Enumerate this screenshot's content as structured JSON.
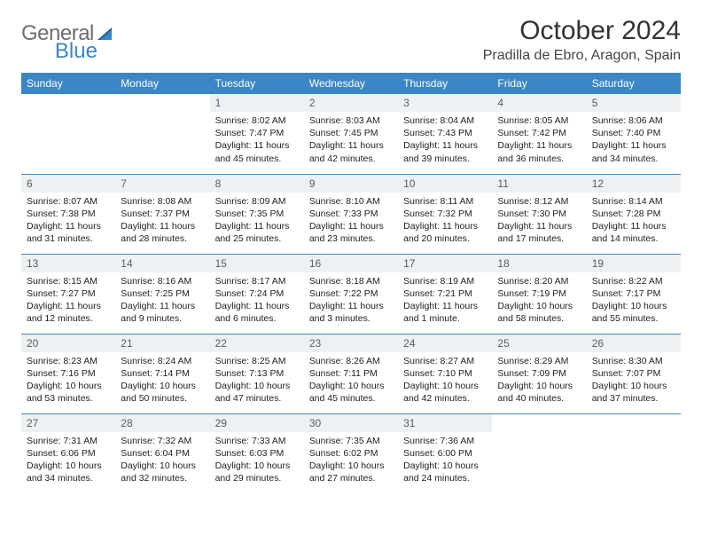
{
  "brand": {
    "name1": "General",
    "name2": "Blue",
    "name1_color": "#6e6e6e",
    "name2_color": "#3b86c6"
  },
  "title": "October 2024",
  "location": "Pradilla de Ebro, Aragon, Spain",
  "colors": {
    "header_bg": "#3b86c6",
    "header_text": "#ffffff",
    "daybar_bg": "#eef1f3",
    "border": "#3b86c6",
    "text": "#222222"
  },
  "dow": [
    "Sunday",
    "Monday",
    "Tuesday",
    "Wednesday",
    "Thursday",
    "Friday",
    "Saturday"
  ],
  "weeks": [
    [
      {
        "blank": true
      },
      {
        "blank": true
      },
      {
        "n": "1",
        "sunrise": "8:02 AM",
        "sunset": "7:47 PM",
        "daylight": "11 hours and 45 minutes."
      },
      {
        "n": "2",
        "sunrise": "8:03 AM",
        "sunset": "7:45 PM",
        "daylight": "11 hours and 42 minutes."
      },
      {
        "n": "3",
        "sunrise": "8:04 AM",
        "sunset": "7:43 PM",
        "daylight": "11 hours and 39 minutes."
      },
      {
        "n": "4",
        "sunrise": "8:05 AM",
        "sunset": "7:42 PM",
        "daylight": "11 hours and 36 minutes."
      },
      {
        "n": "5",
        "sunrise": "8:06 AM",
        "sunset": "7:40 PM",
        "daylight": "11 hours and 34 minutes."
      }
    ],
    [
      {
        "n": "6",
        "sunrise": "8:07 AM",
        "sunset": "7:38 PM",
        "daylight": "11 hours and 31 minutes."
      },
      {
        "n": "7",
        "sunrise": "8:08 AM",
        "sunset": "7:37 PM",
        "daylight": "11 hours and 28 minutes."
      },
      {
        "n": "8",
        "sunrise": "8:09 AM",
        "sunset": "7:35 PM",
        "daylight": "11 hours and 25 minutes."
      },
      {
        "n": "9",
        "sunrise": "8:10 AM",
        "sunset": "7:33 PM",
        "daylight": "11 hours and 23 minutes."
      },
      {
        "n": "10",
        "sunrise": "8:11 AM",
        "sunset": "7:32 PM",
        "daylight": "11 hours and 20 minutes."
      },
      {
        "n": "11",
        "sunrise": "8:12 AM",
        "sunset": "7:30 PM",
        "daylight": "11 hours and 17 minutes."
      },
      {
        "n": "12",
        "sunrise": "8:14 AM",
        "sunset": "7:28 PM",
        "daylight": "11 hours and 14 minutes."
      }
    ],
    [
      {
        "n": "13",
        "sunrise": "8:15 AM",
        "sunset": "7:27 PM",
        "daylight": "11 hours and 12 minutes."
      },
      {
        "n": "14",
        "sunrise": "8:16 AM",
        "sunset": "7:25 PM",
        "daylight": "11 hours and 9 minutes."
      },
      {
        "n": "15",
        "sunrise": "8:17 AM",
        "sunset": "7:24 PM",
        "daylight": "11 hours and 6 minutes."
      },
      {
        "n": "16",
        "sunrise": "8:18 AM",
        "sunset": "7:22 PM",
        "daylight": "11 hours and 3 minutes."
      },
      {
        "n": "17",
        "sunrise": "8:19 AM",
        "sunset": "7:21 PM",
        "daylight": "11 hours and 1 minute."
      },
      {
        "n": "18",
        "sunrise": "8:20 AM",
        "sunset": "7:19 PM",
        "daylight": "10 hours and 58 minutes."
      },
      {
        "n": "19",
        "sunrise": "8:22 AM",
        "sunset": "7:17 PM",
        "daylight": "10 hours and 55 minutes."
      }
    ],
    [
      {
        "n": "20",
        "sunrise": "8:23 AM",
        "sunset": "7:16 PM",
        "daylight": "10 hours and 53 minutes."
      },
      {
        "n": "21",
        "sunrise": "8:24 AM",
        "sunset": "7:14 PM",
        "daylight": "10 hours and 50 minutes."
      },
      {
        "n": "22",
        "sunrise": "8:25 AM",
        "sunset": "7:13 PM",
        "daylight": "10 hours and 47 minutes."
      },
      {
        "n": "23",
        "sunrise": "8:26 AM",
        "sunset": "7:11 PM",
        "daylight": "10 hours and 45 minutes."
      },
      {
        "n": "24",
        "sunrise": "8:27 AM",
        "sunset": "7:10 PM",
        "daylight": "10 hours and 42 minutes."
      },
      {
        "n": "25",
        "sunrise": "8:29 AM",
        "sunset": "7:09 PM",
        "daylight": "10 hours and 40 minutes."
      },
      {
        "n": "26",
        "sunrise": "8:30 AM",
        "sunset": "7:07 PM",
        "daylight": "10 hours and 37 minutes."
      }
    ],
    [
      {
        "n": "27",
        "sunrise": "7:31 AM",
        "sunset": "6:06 PM",
        "daylight": "10 hours and 34 minutes."
      },
      {
        "n": "28",
        "sunrise": "7:32 AM",
        "sunset": "6:04 PM",
        "daylight": "10 hours and 32 minutes."
      },
      {
        "n": "29",
        "sunrise": "7:33 AM",
        "sunset": "6:03 PM",
        "daylight": "10 hours and 29 minutes."
      },
      {
        "n": "30",
        "sunrise": "7:35 AM",
        "sunset": "6:02 PM",
        "daylight": "10 hours and 27 minutes."
      },
      {
        "n": "31",
        "sunrise": "7:36 AM",
        "sunset": "6:00 PM",
        "daylight": "10 hours and 24 minutes."
      },
      {
        "blank": true
      },
      {
        "blank": true
      }
    ]
  ],
  "labels": {
    "sunrise": "Sunrise:",
    "sunset": "Sunset:",
    "daylight": "Daylight:"
  }
}
